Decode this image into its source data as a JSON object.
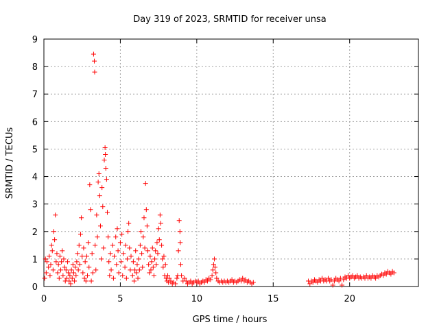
{
  "chart_data": {
    "type": "scatter",
    "title": "Day 319 of 2023, SRMTID for receiver unsa",
    "xlabel": "GPS time / hours",
    "ylabel": "SRMTID / TECUs",
    "xlim": [
      0,
      24.5
    ],
    "ylim": [
      0,
      9
    ],
    "x_ticks": [
      0,
      5,
      10,
      15,
      20
    ],
    "y_ticks": [
      0,
      1,
      2,
      3,
      4,
      5,
      6,
      7,
      8,
      9
    ],
    "grid": true,
    "marker": "+",
    "series": [
      {
        "name": "unsa",
        "color": "#ff0000",
        "points": [
          [
            0.05,
            0.3
          ],
          [
            0.1,
            1.0
          ],
          [
            0.15,
            0.5
          ],
          [
            0.2,
            0.9
          ],
          [
            0.3,
            0.7
          ],
          [
            0.35,
            1.1
          ],
          [
            0.4,
            0.4
          ],
          [
            0.45,
            0.8
          ],
          [
            0.5,
            1.5
          ],
          [
            0.55,
            1.3
          ],
          [
            0.6,
            0.6
          ],
          [
            0.65,
            2.0
          ],
          [
            0.7,
            1.7
          ],
          [
            0.75,
            2.6
          ],
          [
            0.8,
            0.9
          ],
          [
            0.85,
            1.2
          ],
          [
            0.9,
            0.5
          ],
          [
            0.95,
            0.8
          ],
          [
            1.0,
            0.3
          ],
          [
            1.05,
            1.1
          ],
          [
            1.1,
            0.6
          ],
          [
            1.15,
            0.9
          ],
          [
            1.2,
            1.3
          ],
          [
            1.25,
            0.4
          ],
          [
            1.3,
            1.0
          ],
          [
            1.35,
            0.7
          ],
          [
            1.4,
            0.2
          ],
          [
            1.45,
            0.6
          ],
          [
            1.5,
            0.3
          ],
          [
            1.55,
            0.9
          ],
          [
            1.6,
            0.5
          ],
          [
            1.65,
            0.2
          ],
          [
            1.7,
            0.4
          ],
          [
            1.75,
            0.1
          ],
          [
            1.8,
            0.6
          ],
          [
            1.85,
            0.3
          ],
          [
            1.9,
            0.8
          ],
          [
            1.95,
            0.5
          ],
          [
            2.0,
            0.2
          ],
          [
            2.05,
            0.7
          ],
          [
            2.1,
            0.4
          ],
          [
            2.15,
            0.9
          ],
          [
            2.2,
            1.2
          ],
          [
            2.25,
            0.6
          ],
          [
            2.3,
            1.5
          ],
          [
            2.35,
            0.8
          ],
          [
            2.4,
            1.9
          ],
          [
            2.45,
            2.5
          ],
          [
            2.5,
            1.1
          ],
          [
            2.55,
            0.5
          ],
          [
            2.6,
            1.4
          ],
          [
            2.65,
            0.3
          ],
          [
            2.7,
            0.9
          ],
          [
            2.75,
            0.2
          ],
          [
            2.8,
            1.1
          ],
          [
            2.85,
            0.4
          ],
          [
            2.9,
            1.6
          ],
          [
            2.95,
            0.7
          ],
          [
            3.0,
            3.7
          ],
          [
            3.05,
            2.8
          ],
          [
            3.1,
            0.2
          ],
          [
            3.15,
            1.2
          ],
          [
            3.2,
            0.5
          ],
          [
            3.25,
            8.45
          ],
          [
            3.3,
            8.2
          ],
          [
            3.32,
            7.8
          ],
          [
            3.35,
            1.5
          ],
          [
            3.4,
            0.6
          ],
          [
            3.45,
            2.6
          ],
          [
            3.5,
            1.8
          ],
          [
            3.55,
            3.8
          ],
          [
            3.6,
            4.1
          ],
          [
            3.65,
            3.3
          ],
          [
            3.7,
            2.2
          ],
          [
            3.75,
            1.0
          ],
          [
            3.8,
            3.6
          ],
          [
            3.85,
            2.9
          ],
          [
            3.9,
            1.4
          ],
          [
            3.95,
            4.6
          ],
          [
            4.0,
            5.05
          ],
          [
            4.02,
            4.8
          ],
          [
            4.05,
            4.3
          ],
          [
            4.1,
            3.9
          ],
          [
            4.15,
            2.7
          ],
          [
            4.2,
            1.8
          ],
          [
            4.25,
            0.9
          ],
          [
            4.3,
            0.4
          ],
          [
            4.35,
            1.2
          ],
          [
            4.4,
            0.6
          ],
          [
            4.5,
            1.5
          ],
          [
            4.55,
            0.3
          ],
          [
            4.6,
            1.1
          ],
          [
            4.7,
            1.8
          ],
          [
            4.75,
            0.8
          ],
          [
            4.8,
            2.1
          ],
          [
            4.85,
            1.3
          ],
          [
            4.9,
            0.5
          ],
          [
            5.0,
            1.6
          ],
          [
            5.05,
            0.9
          ],
          [
            5.1,
            1.9
          ],
          [
            5.15,
            0.4
          ],
          [
            5.2,
            1.2
          ],
          [
            5.3,
            0.7
          ],
          [
            5.35,
            1.5
          ],
          [
            5.4,
            0.3
          ],
          [
            5.45,
            1.0
          ],
          [
            5.5,
            2.0
          ],
          [
            5.55,
            2.3
          ],
          [
            5.6,
            1.4
          ],
          [
            5.65,
            0.6
          ],
          [
            5.7,
            1.1
          ],
          [
            5.8,
            0.4
          ],
          [
            5.85,
            0.9
          ],
          [
            5.9,
            0.2
          ],
          [
            5.95,
            0.6
          ],
          [
            6.0,
            1.3
          ],
          [
            6.05,
            0.5
          ],
          [
            6.1,
            0.8
          ],
          [
            6.15,
            0.3
          ],
          [
            6.2,
            1.0
          ],
          [
            6.25,
            0.6
          ],
          [
            6.3,
            1.5
          ],
          [
            6.35,
            2.0
          ],
          [
            6.4,
            1.2
          ],
          [
            6.45,
            0.7
          ],
          [
            6.5,
            1.8
          ],
          [
            6.55,
            2.5
          ],
          [
            6.6,
            1.4
          ],
          [
            6.65,
            3.75
          ],
          [
            6.7,
            2.8
          ],
          [
            6.75,
            2.2
          ],
          [
            6.8,
            1.3
          ],
          [
            6.85,
            0.8
          ],
          [
            6.9,
            0.5
          ],
          [
            6.95,
            1.1
          ],
          [
            7.0,
            0.6
          ],
          [
            7.05,
            0.9
          ],
          [
            7.1,
            1.4
          ],
          [
            7.15,
            0.7
          ],
          [
            7.2,
            0.4
          ],
          [
            7.25,
            1.0
          ],
          [
            7.3,
            1.3
          ],
          [
            7.35,
            0.8
          ],
          [
            7.4,
            1.6
          ],
          [
            7.45,
            1.2
          ],
          [
            7.5,
            2.1
          ],
          [
            7.55,
            1.7
          ],
          [
            7.6,
            2.6
          ],
          [
            7.65,
            2.3
          ],
          [
            7.7,
            1.5
          ],
          [
            7.75,
            1.0
          ],
          [
            7.8,
            0.7
          ],
          [
            7.85,
            1.1
          ],
          [
            7.9,
            0.4
          ],
          [
            7.95,
            0.8
          ],
          [
            8.0,
            0.3
          ],
          [
            8.05,
            0.2
          ],
          [
            8.1,
            0.4
          ],
          [
            8.15,
            0.15
          ],
          [
            8.2,
            0.3
          ],
          [
            8.3,
            0.2
          ],
          [
            8.4,
            0.1
          ],
          [
            8.5,
            0.15
          ],
          [
            8.6,
            0.1
          ],
          [
            8.7,
            0.3
          ],
          [
            8.75,
            0.4
          ],
          [
            8.8,
            1.3
          ],
          [
            8.85,
            2.4
          ],
          [
            8.9,
            2.0
          ],
          [
            8.92,
            1.6
          ],
          [
            8.95,
            0.8
          ],
          [
            9.0,
            0.4
          ],
          [
            9.1,
            0.2
          ],
          [
            9.2,
            0.3
          ],
          [
            9.3,
            0.2
          ],
          [
            9.4,
            0.1
          ],
          [
            9.5,
            0.15
          ],
          [
            9.6,
            0.2
          ],
          [
            9.7,
            0.1
          ],
          [
            9.8,
            0.15
          ],
          [
            9.9,
            0.2
          ],
          [
            10.0,
            0.15
          ],
          [
            10.1,
            0.2
          ],
          [
            10.2,
            0.1
          ],
          [
            10.3,
            0.15
          ],
          [
            10.4,
            0.2
          ],
          [
            10.5,
            0.15
          ],
          [
            10.6,
            0.25
          ],
          [
            10.7,
            0.2
          ],
          [
            10.8,
            0.3
          ],
          [
            10.9,
            0.25
          ],
          [
            11.0,
            0.4
          ],
          [
            11.05,
            0.6
          ],
          [
            11.1,
            0.8
          ],
          [
            11.15,
            1.0
          ],
          [
            11.2,
            0.7
          ],
          [
            11.25,
            0.5
          ],
          [
            11.3,
            0.3
          ],
          [
            11.4,
            0.2
          ],
          [
            11.5,
            0.15
          ],
          [
            11.6,
            0.2
          ],
          [
            11.7,
            0.15
          ],
          [
            11.8,
            0.2
          ],
          [
            11.9,
            0.15
          ],
          [
            12.0,
            0.2
          ],
          [
            12.1,
            0.15
          ],
          [
            12.2,
            0.2
          ],
          [
            12.3,
            0.25
          ],
          [
            12.4,
            0.15
          ],
          [
            12.5,
            0.2
          ],
          [
            12.6,
            0.15
          ],
          [
            12.7,
            0.2
          ],
          [
            12.8,
            0.25
          ],
          [
            12.9,
            0.2
          ],
          [
            13.0,
            0.3
          ],
          [
            13.1,
            0.2
          ],
          [
            13.2,
            0.25
          ],
          [
            13.3,
            0.15
          ],
          [
            13.4,
            0.2
          ],
          [
            13.5,
            0.15
          ],
          [
            13.6,
            0.1
          ],
          [
            13.7,
            0.15
          ],
          [
            17.3,
            0.2
          ],
          [
            17.4,
            0.1
          ],
          [
            17.5,
            0.2
          ],
          [
            17.6,
            0.15
          ],
          [
            17.7,
            0.25
          ],
          [
            17.8,
            0.2
          ],
          [
            17.9,
            0.15
          ],
          [
            18.0,
            0.25
          ],
          [
            18.1,
            0.2
          ],
          [
            18.2,
            0.3
          ],
          [
            18.3,
            0.2
          ],
          [
            18.4,
            0.25
          ],
          [
            18.5,
            0.2
          ],
          [
            18.6,
            0.3
          ],
          [
            18.7,
            0.2
          ],
          [
            18.8,
            0.25
          ],
          [
            18.9,
            0.05
          ],
          [
            19.0,
            0.2
          ],
          [
            19.1,
            0.3
          ],
          [
            19.2,
            0.25
          ],
          [
            19.3,
            0.2
          ],
          [
            19.4,
            0.3
          ],
          [
            19.5,
            0.05
          ],
          [
            19.6,
            0.25
          ],
          [
            19.7,
            0.35
          ],
          [
            19.8,
            0.3
          ],
          [
            19.9,
            0.4
          ],
          [
            20.0,
            0.3
          ],
          [
            20.1,
            0.35
          ],
          [
            20.2,
            0.4
          ],
          [
            20.3,
            0.3
          ],
          [
            20.4,
            0.35
          ],
          [
            20.5,
            0.4
          ],
          [
            20.6,
            0.3
          ],
          [
            20.7,
            0.35
          ],
          [
            20.8,
            0.3
          ],
          [
            20.9,
            0.35
          ],
          [
            21.0,
            0.3
          ],
          [
            21.1,
            0.4
          ],
          [
            21.2,
            0.3
          ],
          [
            21.3,
            0.35
          ],
          [
            21.4,
            0.3
          ],
          [
            21.5,
            0.4
          ],
          [
            21.6,
            0.35
          ],
          [
            21.7,
            0.3
          ],
          [
            21.8,
            0.4
          ],
          [
            21.9,
            0.35
          ],
          [
            22.0,
            0.4
          ],
          [
            22.1,
            0.45
          ],
          [
            22.2,
            0.4
          ],
          [
            22.3,
            0.5
          ],
          [
            22.4,
            0.45
          ],
          [
            22.5,
            0.55
          ],
          [
            22.6,
            0.5
          ],
          [
            22.7,
            0.45
          ],
          [
            22.8,
            0.55
          ],
          [
            22.9,
            0.5
          ]
        ]
      }
    ]
  }
}
